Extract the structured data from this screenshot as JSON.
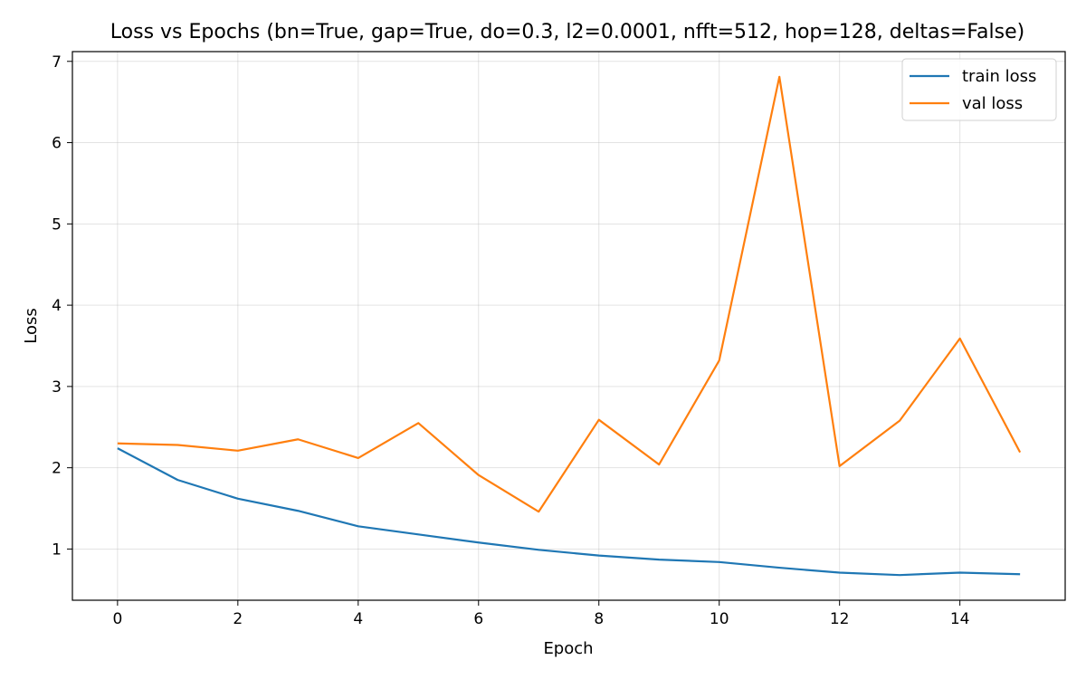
{
  "chart_data": {
    "type": "line",
    "title": "Loss vs Epochs (bn=True, gap=True, do=0.3, l2=0.0001, nfft=512, hop=128, deltas=False)",
    "xlabel": "Epoch",
    "ylabel": "Loss",
    "x": [
      0,
      1,
      2,
      3,
      4,
      5,
      6,
      7,
      8,
      9,
      10,
      11,
      12,
      13,
      14,
      15
    ],
    "xlim": [
      -0.75,
      15.75
    ],
    "ylim": [
      0.37,
      7.12
    ],
    "xticks": [
      0,
      2,
      4,
      6,
      8,
      10,
      12,
      14
    ],
    "yticks": [
      1,
      2,
      3,
      4,
      5,
      6,
      7
    ],
    "grid": true,
    "legend_position": "top-right",
    "series": [
      {
        "name": "train loss",
        "color": "#1f77b4",
        "values": [
          2.24,
          1.85,
          1.62,
          1.47,
          1.28,
          1.18,
          1.08,
          0.99,
          0.92,
          0.87,
          0.84,
          0.77,
          0.71,
          0.68,
          0.71,
          0.69
        ]
      },
      {
        "name": "val loss",
        "color": "#ff7f0e",
        "values": [
          2.3,
          2.28,
          2.21,
          2.35,
          2.12,
          2.55,
          1.91,
          1.46,
          2.59,
          2.04,
          3.32,
          6.81,
          2.02,
          2.58,
          3.59,
          2.19
        ]
      }
    ]
  }
}
